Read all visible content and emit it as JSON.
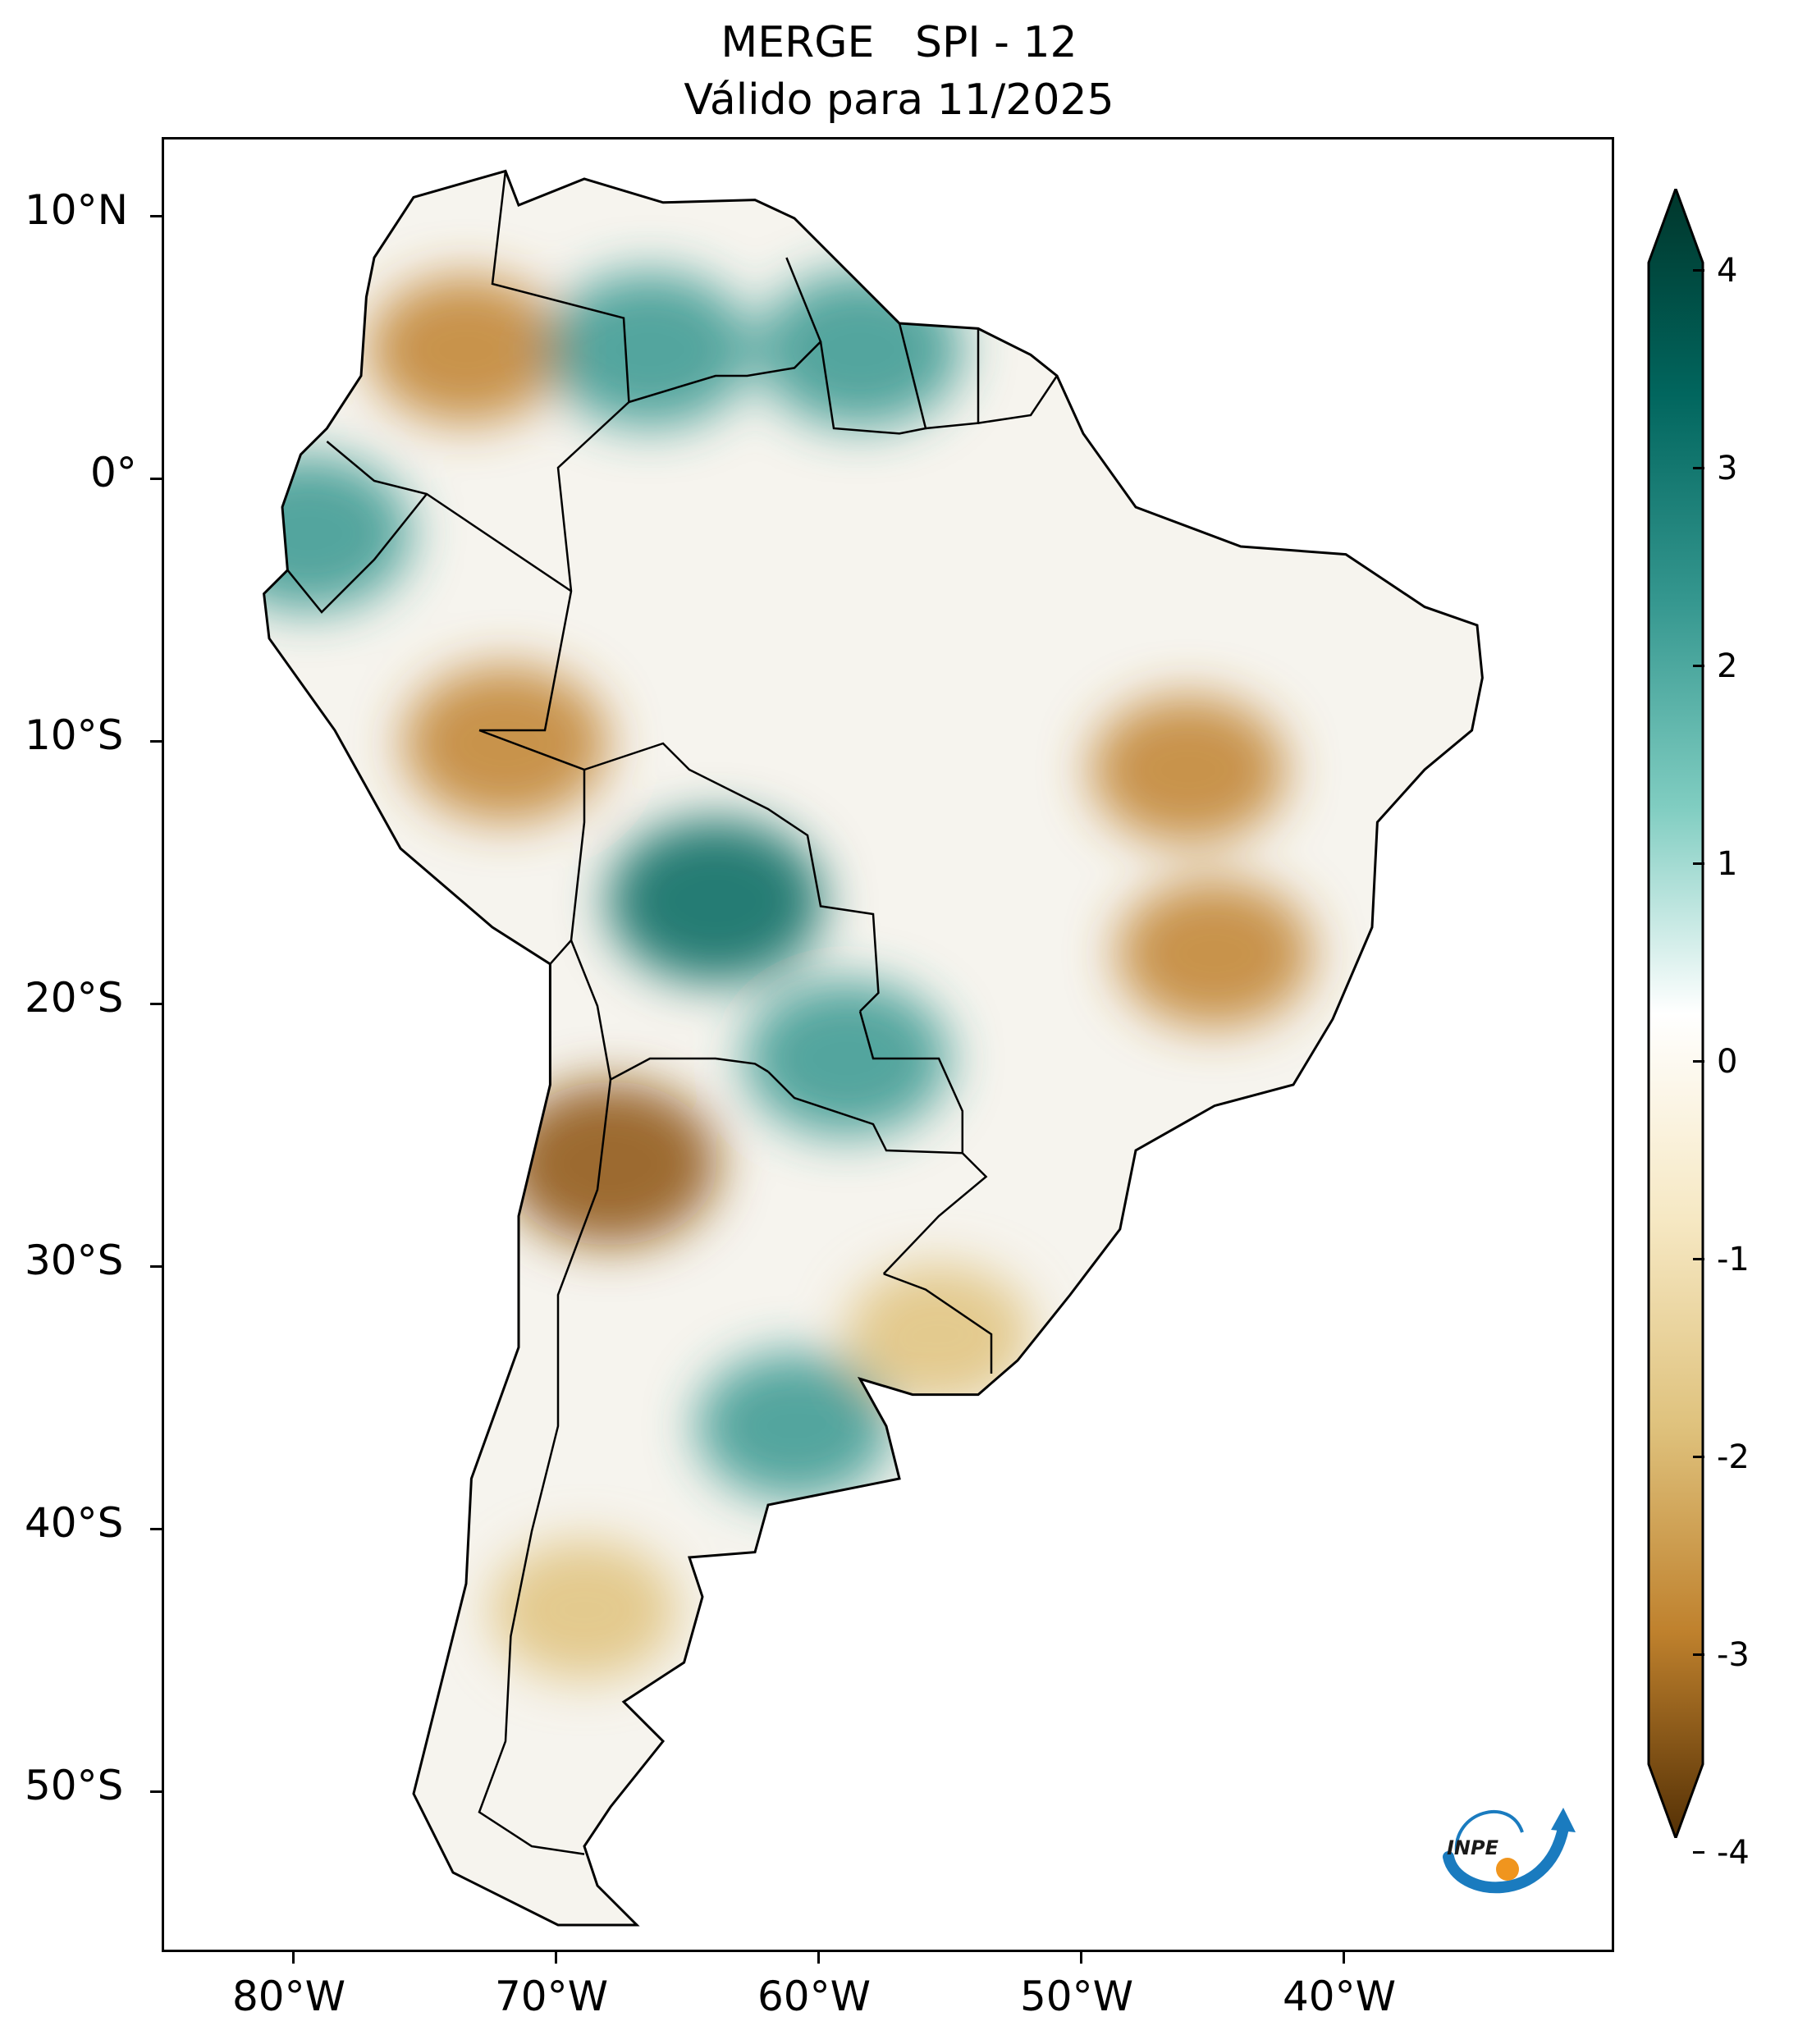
{
  "title": {
    "line1": "MERGE   SPI - 12",
    "line2": "Válido para 11/2025"
  },
  "map": {
    "type": "map",
    "region": "South America",
    "variable": "SPI - 12",
    "lat_ticks": [
      "10°N",
      "0°",
      "10°S",
      "20°S",
      "30°S",
      "40°S",
      "50°S"
    ],
    "lat_values": [
      10,
      0,
      -10,
      -20,
      -30,
      -40,
      -50
    ],
    "lon_ticks": [
      "80°W",
      "70°W",
      "60°W",
      "50°W",
      "40°W"
    ],
    "lon_values": [
      -80,
      -70,
      -60,
      -50,
      -40
    ],
    "lon_range": [
      -85,
      -30
    ],
    "lat_range": [
      -56,
      13
    ],
    "anomaly_regions": [
      {
        "name": "Northern Colombia",
        "lon": -73.5,
        "lat": 5,
        "spi": -2
      },
      {
        "name": "Amazonas (Venezuela)",
        "lon": -66.5,
        "lat": 5,
        "spi": 2.5
      },
      {
        "name": "Guyana",
        "lon": -58.5,
        "lat": 5,
        "spi": 2.5
      },
      {
        "name": "Ecuador coast",
        "lon": -79.5,
        "lat": -2,
        "spi": 2.5
      },
      {
        "name": "Peru (south-central)",
        "lon": -72,
        "lat": -10,
        "spi": -2.5
      },
      {
        "name": "Bolivia lowlands",
        "lon": -64,
        "lat": -16,
        "spi": 3
      },
      {
        "name": "Paraguay",
        "lon": -59,
        "lat": -22,
        "spi": 2.5
      },
      {
        "name": "Tocantins / Bahia",
        "lon": -46,
        "lat": -11,
        "spi": -2
      },
      {
        "name": "Minas Gerais",
        "lon": -45,
        "lat": -18,
        "spi": -2
      },
      {
        "name": "Northwest Argentina",
        "lon": -68,
        "lat": -26,
        "spi": -3
      },
      {
        "name": "Buenos Aires",
        "lon": -61,
        "lat": -36,
        "spi": 2
      },
      {
        "name": "Uruguay",
        "lon": -55.5,
        "lat": -32.5,
        "spi": -1.5
      },
      {
        "name": "Patagonia",
        "lon": -69,
        "lat": -43,
        "spi": -1.5
      }
    ]
  },
  "colorbar": {
    "ticks": [
      "4",
      "3",
      "2",
      "1",
      "0",
      "-1",
      "-2",
      "-3",
      "-4"
    ],
    "tick_values": [
      4,
      3,
      2,
      1,
      0,
      -1,
      -2,
      -3,
      -4
    ],
    "colors": {
      "max": "#00362b",
      "positive": "#01665e",
      "light_positive": "#80cdc1",
      "zero": "#ffffff",
      "light_negative": "#dfc27d",
      "negative": "#8c510a",
      "min": "#543005"
    },
    "extend": "both"
  },
  "logo": {
    "text": "INPE",
    "arrow_color": "#1a7bbf",
    "dot_color": "#f0951e"
  }
}
